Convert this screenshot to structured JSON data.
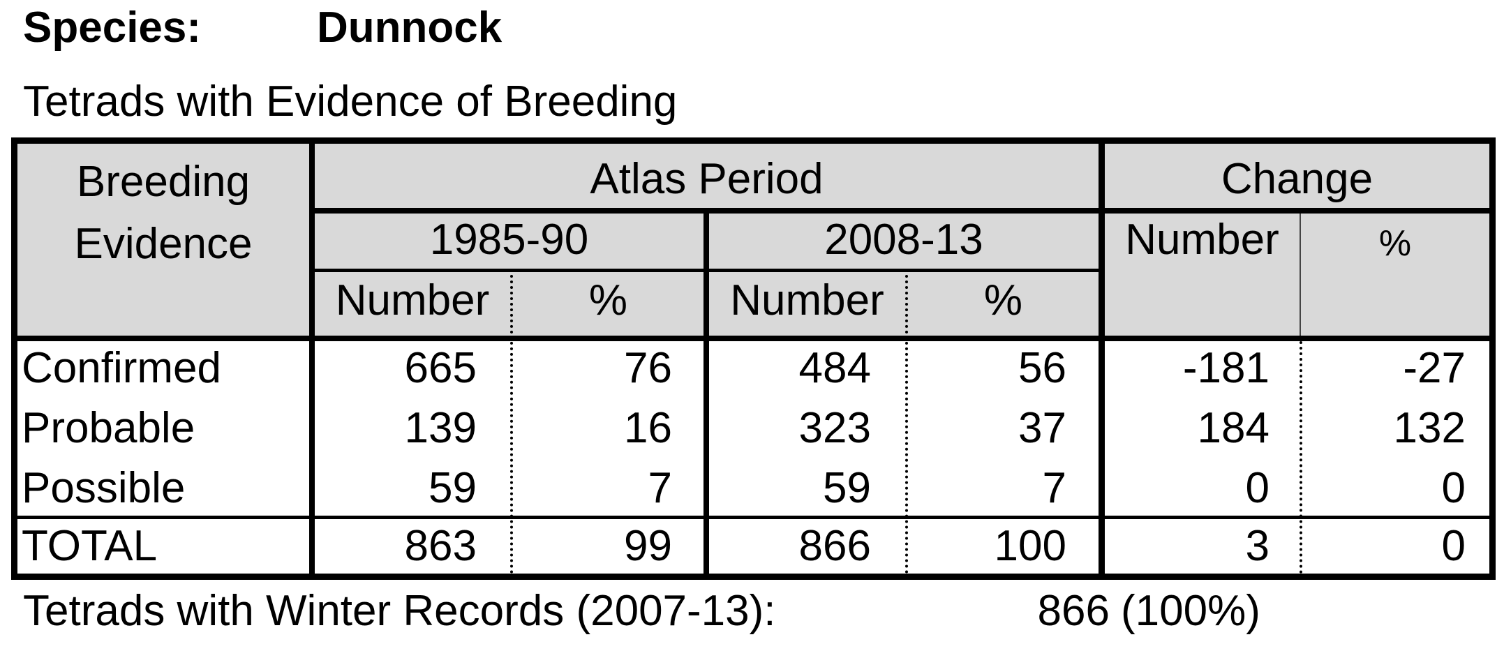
{
  "species": {
    "label": "Species:",
    "name": "Dunnock"
  },
  "subtitle": "Tetrads with Evidence of Breeding",
  "table": {
    "headers": {
      "breeding_line1": "Breeding",
      "breeding_line2": "Evidence",
      "atlas_period": "Atlas Period",
      "change": "Change",
      "period1": "1985-90",
      "period2": "2008-13",
      "number": "Number",
      "percent": "%"
    },
    "rows": [
      {
        "label": "Confirmed",
        "n1": "665",
        "p1": "76",
        "n2": "484",
        "p2": "56",
        "cn": "-181",
        "cp": "-27"
      },
      {
        "label": "Probable",
        "n1": "139",
        "p1": "16",
        "n2": "323",
        "p2": "37",
        "cn": "184",
        "cp": "132"
      },
      {
        "label": "Possible",
        "n1": "59",
        "p1": "7",
        "n2": "59",
        "p2": "7",
        "cn": "0",
        "cp": "0"
      },
      {
        "label": "TOTAL",
        "n1": "863",
        "p1": "99",
        "n2": "866",
        "p2": "100",
        "cn": "3",
        "cp": "0"
      }
    ]
  },
  "winter": {
    "label": "Tetrads with Winter Records (2007-13):",
    "number": "866",
    "percent": "(100%)"
  }
}
